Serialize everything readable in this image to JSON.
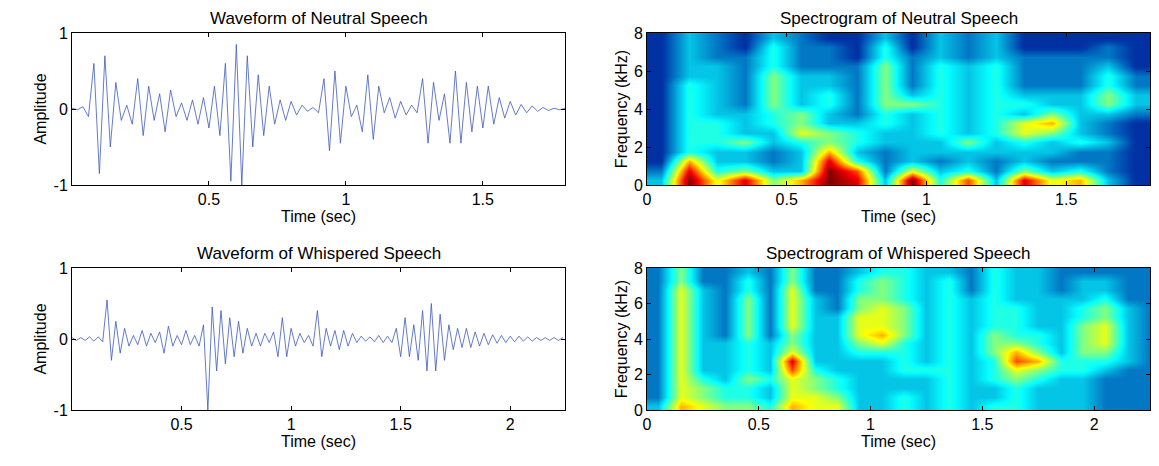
{
  "chart_data": [
    {
      "type": "line",
      "title": "Waveform of Neutral Speech",
      "xlabel": "Time (sec)",
      "ylabel": "Amplitude",
      "color": "#3d5ab8",
      "grid": false,
      "xlim": [
        0,
        1.8
      ],
      "xticks": [
        0.5,
        1,
        1.5
      ],
      "ylim": [
        -1,
        1
      ],
      "yticks": [
        -1,
        0,
        1
      ],
      "x": [
        0,
        0.02,
        0.04,
        0.06,
        0.08,
        0.1,
        0.12,
        0.14,
        0.16,
        0.18,
        0.2,
        0.22,
        0.24,
        0.26,
        0.28,
        0.3,
        0.32,
        0.34,
        0.36,
        0.38,
        0.4,
        0.42,
        0.44,
        0.46,
        0.48,
        0.5,
        0.52,
        0.54,
        0.56,
        0.58,
        0.6,
        0.62,
        0.64,
        0.66,
        0.68,
        0.7,
        0.72,
        0.74,
        0.76,
        0.78,
        0.8,
        0.82,
        0.84,
        0.86,
        0.88,
        0.9,
        0.92,
        0.94,
        0.96,
        0.98,
        1,
        1.02,
        1.04,
        1.06,
        1.08,
        1.1,
        1.12,
        1.14,
        1.16,
        1.18,
        1.2,
        1.22,
        1.24,
        1.26,
        1.28,
        1.3,
        1.32,
        1.34,
        1.36,
        1.38,
        1.4,
        1.42,
        1.44,
        1.46,
        1.48,
        1.5,
        1.52,
        1.54,
        1.56,
        1.58,
        1.6,
        1.62,
        1.64,
        1.66,
        1.68,
        1.7,
        1.72,
        1.74,
        1.76,
        1.78,
        1.8
      ],
      "values": [
        0.01,
        -0.01,
        0.03,
        -0.1,
        0.6,
        -0.85,
        0.7,
        -0.5,
        0.35,
        -0.15,
        0.05,
        -0.2,
        0.4,
        -0.35,
        0.3,
        -0.15,
        0.2,
        -0.3,
        0.25,
        -0.1,
        0.08,
        -0.15,
        0.12,
        -0.2,
        0.15,
        -0.25,
        0.3,
        -0.35,
        0.6,
        -0.95,
        0.85,
        -1.0,
        0.7,
        -0.5,
        0.45,
        -0.35,
        0.3,
        -0.2,
        0.12,
        -0.15,
        0.1,
        -0.08,
        0.05,
        -0.03,
        0.02,
        -0.05,
        0.4,
        -0.55,
        0.5,
        -0.45,
        0.3,
        -0.1,
        0.05,
        -0.3,
        0.45,
        -0.4,
        0.3,
        -0.05,
        0.15,
        -0.12,
        0.1,
        -0.08,
        0.05,
        -0.05,
        0.4,
        -0.45,
        0.35,
        -0.15,
        0.2,
        -0.45,
        0.5,
        -0.45,
        0.35,
        -0.3,
        0.3,
        -0.25,
        0.3,
        -0.2,
        0.15,
        -0.12,
        0.1,
        -0.08,
        0.06,
        -0.05,
        0.04,
        -0.03,
        0.02,
        -0.02,
        0.01,
        -0.01,
        0.01
      ]
    },
    {
      "type": "heatmap",
      "title": "Spectrogram of Neutral Speech",
      "xlabel": "Time (sec)",
      "ylabel": "Frequency (kHz)",
      "color": "Jet",
      "grid": false,
      "xlim": [
        0,
        1.8
      ],
      "xticks": [
        0,
        0.5,
        1,
        1.5
      ],
      "ylim": [
        0,
        8
      ],
      "yticks": [
        0,
        2,
        4,
        6,
        8
      ],
      "zlim": [
        0,
        10
      ],
      "x": [
        0.05,
        0.15,
        0.25,
        0.35,
        0.45,
        0.55,
        0.65,
        0.75,
        0.85,
        0.95,
        1.05,
        1.15,
        1.25,
        1.35,
        1.45,
        1.55,
        1.65,
        1.75
      ],
      "y": [
        0.25,
        0.75,
        1.25,
        1.75,
        2.25,
        2.75,
        3.25,
        3.75,
        4.25,
        4.75,
        5.25,
        5.75,
        6.25,
        6.75,
        7.25,
        7.75
      ],
      "z": [
        [
          3,
          10,
          6,
          9,
          5,
          7,
          10,
          9,
          3,
          10,
          4,
          8,
          3,
          9,
          6,
          7,
          3,
          1
        ],
        [
          2,
          9,
          4,
          5,
          3,
          3,
          10,
          8,
          2,
          6,
          3,
          4,
          2,
          5,
          3,
          4,
          2,
          1
        ],
        [
          1,
          7,
          3,
          3,
          2,
          3,
          9,
          4,
          2,
          3,
          2,
          3,
          2,
          3,
          2,
          2,
          2,
          1
        ],
        [
          1,
          4,
          3,
          3,
          2,
          3,
          7,
          3,
          2,
          3,
          3,
          3,
          3,
          3,
          3,
          2,
          2,
          1
        ],
        [
          1,
          4,
          4,
          5,
          3,
          4,
          5,
          4,
          3,
          3,
          3,
          5,
          3,
          4,
          3,
          4,
          3,
          1
        ],
        [
          1,
          4,
          4,
          3,
          3,
          6,
          5,
          4,
          3,
          3,
          4,
          3,
          4,
          6,
          5,
          3,
          2,
          1
        ],
        [
          1,
          4,
          4,
          3,
          4,
          5,
          3,
          3,
          4,
          3,
          4,
          3,
          4,
          6,
          7,
          3,
          2,
          1
        ],
        [
          1,
          4,
          3,
          3,
          4,
          5,
          3,
          2,
          4,
          3,
          4,
          3,
          4,
          3,
          5,
          3,
          3,
          2
        ],
        [
          1,
          4,
          3,
          2,
          5,
          3,
          4,
          2,
          5,
          5,
          4,
          3,
          4,
          4,
          3,
          3,
          5,
          3
        ],
        [
          1,
          4,
          3,
          2,
          5,
          3,
          4,
          2,
          5,
          3,
          4,
          3,
          4,
          3,
          3,
          3,
          5,
          3
        ],
        [
          1,
          4,
          3,
          2,
          5,
          3,
          3,
          2,
          5,
          2,
          4,
          3,
          4,
          2,
          2,
          2,
          4,
          2
        ],
        [
          1,
          3,
          3,
          2,
          5,
          3,
          3,
          2,
          5,
          2,
          4,
          3,
          4,
          2,
          2,
          2,
          4,
          2
        ],
        [
          1,
          3,
          3,
          2,
          4,
          2,
          2,
          2,
          5,
          2,
          4,
          3,
          4,
          2,
          2,
          2,
          3,
          1
        ],
        [
          1,
          3,
          2,
          2,
          4,
          2,
          2,
          1,
          4,
          2,
          3,
          2,
          3,
          2,
          2,
          2,
          2,
          1
        ],
        [
          1,
          3,
          2,
          1,
          4,
          2,
          2,
          1,
          4,
          1,
          3,
          2,
          3,
          1,
          1,
          1,
          2,
          1
        ],
        [
          1,
          3,
          2,
          1,
          3,
          2,
          1,
          1,
          3,
          1,
          3,
          2,
          3,
          1,
          1,
          1,
          1,
          1
        ]
      ]
    },
    {
      "type": "line",
      "title": "Waveform of Whispered Speech",
      "xlabel": "Time (sec)",
      "ylabel": "Amplitude",
      "color": "#3d5ab8",
      "grid": false,
      "xlim": [
        0,
        2.25
      ],
      "xticks": [
        0.5,
        1,
        1.5,
        2
      ],
      "ylim": [
        -1,
        1
      ],
      "yticks": [
        -1,
        0,
        1
      ],
      "x": [
        0,
        0.02,
        0.04,
        0.06,
        0.08,
        0.1,
        0.12,
        0.14,
        0.16,
        0.18,
        0.2,
        0.22,
        0.24,
        0.26,
        0.28,
        0.3,
        0.32,
        0.34,
        0.36,
        0.38,
        0.4,
        0.42,
        0.44,
        0.46,
        0.48,
        0.5,
        0.52,
        0.54,
        0.56,
        0.58,
        0.6,
        0.62,
        0.64,
        0.66,
        0.68,
        0.7,
        0.72,
        0.74,
        0.76,
        0.78,
        0.8,
        0.82,
        0.84,
        0.86,
        0.88,
        0.9,
        0.92,
        0.94,
        0.96,
        0.98,
        1,
        1.02,
        1.04,
        1.06,
        1.08,
        1.1,
        1.12,
        1.14,
        1.16,
        1.18,
        1.2,
        1.22,
        1.24,
        1.26,
        1.28,
        1.3,
        1.32,
        1.34,
        1.36,
        1.38,
        1.4,
        1.42,
        1.44,
        1.46,
        1.48,
        1.5,
        1.52,
        1.54,
        1.56,
        1.58,
        1.6,
        1.62,
        1.64,
        1.66,
        1.68,
        1.7,
        1.72,
        1.74,
        1.76,
        1.78,
        1.8,
        1.82,
        1.84,
        1.86,
        1.88,
        1.9,
        1.92,
        1.94,
        1.96,
        1.98,
        2,
        2.02,
        2.04,
        2.06,
        2.08,
        2.1,
        2.12,
        2.14,
        2.16,
        2.18,
        2.2,
        2.22,
        2.24
      ],
      "values": [
        0.02,
        -0.02,
        0.02,
        -0.02,
        0.03,
        -0.03,
        0.03,
        -0.04,
        0.55,
        -0.3,
        0.25,
        -0.2,
        0.15,
        -0.1,
        0.05,
        -0.08,
        0.12,
        -0.1,
        0.08,
        -0.05,
        0.1,
        -0.2,
        0.18,
        -0.1,
        0.05,
        -0.08,
        0.12,
        -0.08,
        0.05,
        -0.1,
        0.2,
        -1.0,
        0.45,
        -0.45,
        0.4,
        -0.35,
        0.3,
        -0.25,
        0.25,
        -0.2,
        0.15,
        -0.1,
        0.08,
        -0.1,
        0.08,
        -0.05,
        0.1,
        -0.25,
        0.3,
        -0.25,
        0.15,
        -0.1,
        0.08,
        -0.05,
        0.05,
        -0.1,
        0.4,
        -0.25,
        0.15,
        -0.1,
        0.12,
        -0.15,
        0.12,
        -0.1,
        0.08,
        -0.05,
        0.04,
        -0.03,
        0.03,
        -0.04,
        0.05,
        -0.05,
        0.04,
        -0.05,
        0.15,
        -0.25,
        0.3,
        -0.25,
        0.2,
        -0.3,
        0.4,
        -0.45,
        0.5,
        -0.45,
        0.35,
        -0.3,
        0.2,
        -0.15,
        0.15,
        -0.12,
        0.15,
        -0.12,
        0.1,
        -0.1,
        0.08,
        -0.08,
        0.06,
        -0.06,
        0.05,
        -0.05,
        0.04,
        -0.04,
        0.04,
        -0.03,
        0.03,
        -0.03,
        0.02,
        -0.02,
        0.02,
        -0.02,
        0.02,
        -0.02,
        0.02
      ]
    },
    {
      "type": "heatmap",
      "title": "Spectrogram of Whispered Speech",
      "xlabel": "Time (sec)",
      "ylabel": "Frequency (kHz)",
      "color": "Jet",
      "grid": false,
      "xlim": [
        0,
        2.25
      ],
      "xticks": [
        0,
        0.5,
        1,
        1.5,
        2
      ],
      "ylim": [
        0,
        8
      ],
      "yticks": [
        0,
        2,
        4,
        6,
        8
      ],
      "zlim": [
        0,
        10
      ],
      "x": [
        0.05,
        0.15,
        0.25,
        0.35,
        0.45,
        0.55,
        0.65,
        0.75,
        0.85,
        0.95,
        1.05,
        1.15,
        1.25,
        1.35,
        1.45,
        1.55,
        1.65,
        1.75,
        1.85,
        1.95,
        2.05,
        2.15,
        2.25
      ],
      "y": [
        0.25,
        0.75,
        1.25,
        1.75,
        2.25,
        2.75,
        3.25,
        3.75,
        4.25,
        4.75,
        5.25,
        5.75,
        6.25,
        6.75,
        7.25,
        7.75
      ],
      "z": [
        [
          3,
          7,
          6,
          5,
          5,
          4,
          7,
          6,
          6,
          3,
          3,
          4,
          3,
          4,
          3,
          4,
          4,
          3,
          3,
          3,
          2,
          2,
          2
        ],
        [
          2,
          6,
          5,
          4,
          4,
          3,
          6,
          6,
          5,
          3,
          3,
          4,
          3,
          4,
          3,
          3,
          4,
          3,
          3,
          3,
          2,
          2,
          2
        ],
        [
          2,
          6,
          5,
          4,
          4,
          3,
          6,
          5,
          4,
          3,
          3,
          3,
          3,
          4,
          3,
          3,
          4,
          3,
          3,
          3,
          2,
          2,
          2
        ],
        [
          2,
          6,
          4,
          3,
          5,
          4,
          6,
          5,
          4,
          3,
          3,
          3,
          3,
          4,
          3,
          4,
          5,
          4,
          3,
          3,
          2,
          2,
          2
        ],
        [
          2,
          6,
          3,
          3,
          4,
          3,
          8,
          4,
          3,
          3,
          3,
          4,
          4,
          4,
          3,
          4,
          6,
          5,
          4,
          4,
          3,
          2,
          2
        ],
        [
          2,
          6,
          3,
          3,
          4,
          3,
          9,
          3,
          3,
          3,
          3,
          4,
          3,
          4,
          3,
          4,
          8,
          7,
          4,
          4,
          4,
          3,
          2
        ],
        [
          2,
          6,
          3,
          3,
          4,
          3,
          6,
          3,
          3,
          4,
          4,
          4,
          3,
          4,
          3,
          5,
          7,
          5,
          3,
          5,
          5,
          3,
          2
        ],
        [
          2,
          6,
          3,
          3,
          4,
          3,
          5,
          3,
          3,
          5,
          6,
          4,
          3,
          4,
          3,
          5,
          5,
          4,
          3,
          5,
          6,
          3,
          2
        ],
        [
          2,
          6,
          3,
          2,
          5,
          2,
          5,
          3,
          3,
          6,
          7,
          5,
          3,
          4,
          3,
          5,
          4,
          4,
          3,
          5,
          6,
          3,
          2
        ],
        [
          2,
          6,
          3,
          2,
          5,
          2,
          6,
          3,
          3,
          6,
          6,
          5,
          3,
          4,
          3,
          4,
          4,
          3,
          3,
          5,
          6,
          3,
          2
        ],
        [
          2,
          6,
          3,
          2,
          5,
          2,
          6,
          3,
          3,
          6,
          6,
          5,
          3,
          4,
          3,
          4,
          4,
          3,
          3,
          4,
          5,
          3,
          2
        ],
        [
          2,
          6,
          3,
          2,
          5,
          2,
          6,
          3,
          2,
          5,
          6,
          5,
          3,
          4,
          3,
          4,
          4,
          3,
          3,
          4,
          5,
          3,
          2
        ],
        [
          2,
          6,
          3,
          2,
          5,
          2,
          6,
          3,
          2,
          5,
          5,
          4,
          3,
          4,
          3,
          4,
          3,
          3,
          3,
          3,
          4,
          2,
          2
        ],
        [
          2,
          6,
          3,
          2,
          4,
          2,
          6,
          2,
          2,
          4,
          5,
          4,
          3,
          4,
          2,
          4,
          3,
          3,
          2,
          3,
          3,
          2,
          2
        ],
        [
          2,
          5,
          2,
          2,
          4,
          2,
          5,
          2,
          2,
          4,
          5,
          4,
          3,
          4,
          2,
          4,
          3,
          3,
          2,
          3,
          3,
          2,
          2
        ],
        [
          2,
          5,
          2,
          2,
          3,
          2,
          5,
          2,
          2,
          3,
          4,
          4,
          3,
          3,
          2,
          4,
          3,
          3,
          2,
          2,
          2,
          2,
          2
        ]
      ]
    }
  ]
}
